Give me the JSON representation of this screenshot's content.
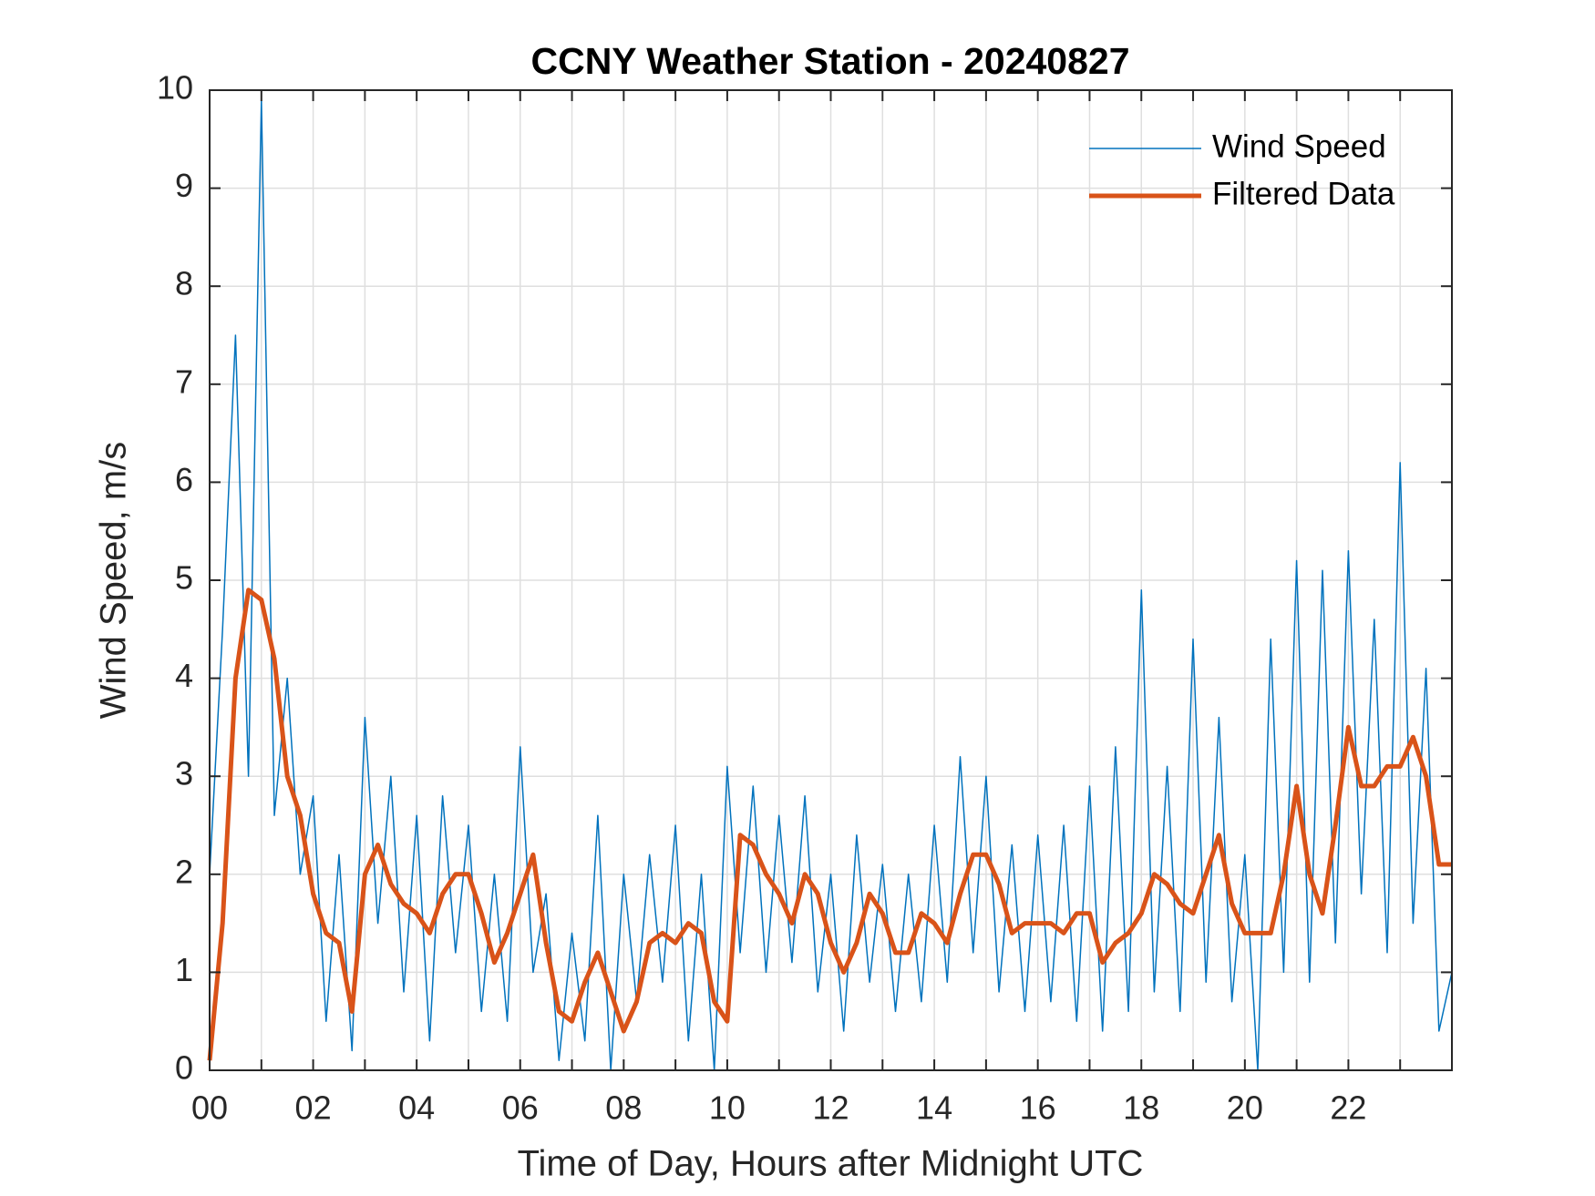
{
  "chart_data": {
    "type": "line",
    "title": "CCNY Weather Station - 20240827",
    "x_label": "Time of Day, Hours after Midnight UTC",
    "y_label": "Wind Speed, m/s",
    "x": [
      0,
      0.25,
      0.5,
      0.75,
      1,
      1.25,
      1.5,
      1.75,
      2,
      2.25,
      2.5,
      2.75,
      3,
      3.25,
      3.5,
      3.75,
      4,
      4.25,
      4.5,
      4.75,
      5,
      5.25,
      5.5,
      5.75,
      6,
      6.25,
      6.5,
      6.75,
      7,
      7.25,
      7.5,
      7.75,
      8,
      8.25,
      8.5,
      8.75,
      9,
      9.25,
      9.5,
      9.75,
      10,
      10.25,
      10.5,
      10.75,
      11,
      11.25,
      11.5,
      11.75,
      12,
      12.25,
      12.5,
      12.75,
      13,
      13.25,
      13.5,
      13.75,
      14,
      14.25,
      14.5,
      14.75,
      15,
      15.25,
      15.5,
      15.75,
      16,
      16.25,
      16.5,
      16.75,
      17,
      17.25,
      17.5,
      17.75,
      18,
      18.25,
      18.5,
      18.75,
      19,
      19.25,
      19.5,
      19.75,
      20,
      20.25,
      20.5,
      20.75,
      21,
      21.25,
      21.5,
      21.75,
      22,
      22.25,
      22.5,
      22.75,
      23,
      23.25,
      23.5,
      23.75,
      24
    ],
    "series": [
      {
        "name": "Wind Speed",
        "color": "#0072BD",
        "width": 1.5,
        "values": [
          2.0,
          4.5,
          7.5,
          3.0,
          9.9,
          2.6,
          4.0,
          2.0,
          2.8,
          0.5,
          2.2,
          0.2,
          3.6,
          1.5,
          3.0,
          0.8,
          2.6,
          0.3,
          2.8,
          1.2,
          2.5,
          0.6,
          2.0,
          0.5,
          3.3,
          1.0,
          1.8,
          0.1,
          1.4,
          0.3,
          2.6,
          0.0,
          2.0,
          0.7,
          2.2,
          0.9,
          2.5,
          0.3,
          2.0,
          0.0,
          3.1,
          1.2,
          2.9,
          1.0,
          2.6,
          1.1,
          2.8,
          0.8,
          2.0,
          0.4,
          2.4,
          0.9,
          2.1,
          0.6,
          2.0,
          0.7,
          2.5,
          0.9,
          3.2,
          1.2,
          3.0,
          0.8,
          2.3,
          0.6,
          2.4,
          0.7,
          2.5,
          0.5,
          2.9,
          0.4,
          3.3,
          0.6,
          4.9,
          0.8,
          3.1,
          0.6,
          4.4,
          0.9,
          3.6,
          0.7,
          2.2,
          0.0,
          4.4,
          1.0,
          5.2,
          0.9,
          5.1,
          1.3,
          5.3,
          1.8,
          4.6,
          1.2,
          6.2,
          1.5,
          4.1,
          0.4,
          1.0
        ]
      },
      {
        "name": "Filtered Data",
        "color": "#D95319",
        "width": 5,
        "values": [
          0.1,
          1.5,
          4.0,
          4.9,
          4.8,
          4.2,
          3.0,
          2.6,
          1.8,
          1.4,
          1.3,
          0.6,
          2.0,
          2.3,
          1.9,
          1.7,
          1.6,
          1.4,
          1.8,
          2.0,
          2.0,
          1.6,
          1.1,
          1.4,
          1.8,
          2.2,
          1.3,
          0.6,
          0.5,
          0.9,
          1.2,
          0.8,
          0.4,
          0.7,
          1.3,
          1.4,
          1.3,
          1.5,
          1.4,
          0.7,
          0.5,
          2.4,
          2.3,
          2.0,
          1.8,
          1.5,
          2.0,
          1.8,
          1.3,
          1.0,
          1.3,
          1.8,
          1.6,
          1.2,
          1.2,
          1.6,
          1.5,
          1.3,
          1.8,
          2.2,
          2.2,
          1.9,
          1.4,
          1.5,
          1.5,
          1.5,
          1.4,
          1.6,
          1.6,
          1.1,
          1.3,
          1.4,
          1.6,
          2.0,
          1.9,
          1.7,
          1.6,
          2.0,
          2.4,
          1.7,
          1.4,
          1.4,
          1.4,
          2.0,
          2.9,
          2.0,
          1.6,
          2.5,
          3.5,
          2.9,
          2.9,
          3.1,
          3.1,
          3.4,
          3.0,
          2.1,
          2.1
        ]
      }
    ],
    "xlim": [
      0,
      24
    ],
    "xticks": [
      {
        "value": 0,
        "label": "00"
      },
      {
        "value": 2,
        "label": "02"
      },
      {
        "value": 4,
        "label": "04"
      },
      {
        "value": 6,
        "label": "06"
      },
      {
        "value": 8,
        "label": "08"
      },
      {
        "value": 10,
        "label": "10"
      },
      {
        "value": 12,
        "label": "12"
      },
      {
        "value": 14,
        "label": "14"
      },
      {
        "value": 16,
        "label": "16"
      },
      {
        "value": 18,
        "label": "18"
      },
      {
        "value": 20,
        "label": "20"
      },
      {
        "value": 22,
        "label": "22"
      }
    ],
    "x_minor_ticks": [
      1,
      3,
      5,
      7,
      9,
      11,
      13,
      15,
      17,
      19,
      21,
      23
    ],
    "ylim": [
      0,
      10
    ],
    "yticks": [
      0,
      1,
      2,
      3,
      4,
      5,
      6,
      7,
      8,
      9,
      10
    ],
    "grid": true,
    "legend": "top-right"
  }
}
